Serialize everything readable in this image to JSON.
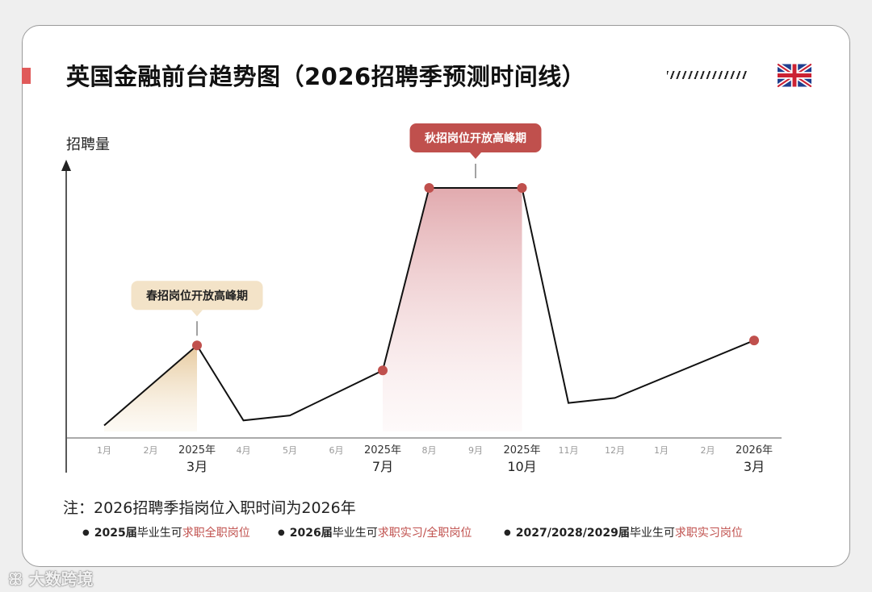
{
  "header": {
    "title": "英国金融前台趋势图（2026招聘季预测时间线）",
    "flag_icon": "uk-flag-icon"
  },
  "colors": {
    "line": "#111111",
    "marker": "#c0504d",
    "spring_fill": "#e8cfa4",
    "autumn_fill": "#d99a9f",
    "spring_callout_bg": "#f3e3c8",
    "autumn_callout_bg": "#c0504d",
    "accent_red": "#e05a5a"
  },
  "chart_data": {
    "type": "line",
    "ylabel": "招聘量",
    "x_ticks": [
      {
        "top": "1月",
        "bottom": ""
      },
      {
        "top": "2月",
        "bottom": ""
      },
      {
        "top": "2025年",
        "bottom": "3月"
      },
      {
        "top": "4月",
        "bottom": ""
      },
      {
        "top": "5月",
        "bottom": ""
      },
      {
        "top": "6月",
        "bottom": ""
      },
      {
        "top": "2025年",
        "bottom": "7月"
      },
      {
        "top": "8月",
        "bottom": ""
      },
      {
        "top": "9月",
        "bottom": ""
      },
      {
        "top": "2025年",
        "bottom": "10月"
      },
      {
        "top": "11月",
        "bottom": ""
      },
      {
        "top": "12月",
        "bottom": ""
      },
      {
        "top": "1月",
        "bottom": ""
      },
      {
        "top": "2月",
        "bottom": ""
      },
      {
        "top": "2026年",
        "bottom": "3月"
      }
    ],
    "points": [
      {
        "x": 0,
        "y": 5
      },
      {
        "x": 2,
        "y": 37
      },
      {
        "x": 3,
        "y": 7
      },
      {
        "x": 4,
        "y": 9
      },
      {
        "x": 6,
        "y": 27
      },
      {
        "x": 7,
        "y": 100
      },
      {
        "x": 9,
        "y": 100
      },
      {
        "x": 10,
        "y": 14
      },
      {
        "x": 11,
        "y": 16
      },
      {
        "x": 14,
        "y": 39
      }
    ],
    "markers": [
      2,
      6,
      7,
      9,
      14
    ],
    "ylim": [
      0,
      115
    ],
    "highlights": [
      {
        "label": "春招岗位开放高峰期",
        "from_x": 0,
        "to_x": 2,
        "style": "spring",
        "anchor_x": 2
      },
      {
        "label": "秋招岗位开放高峰期",
        "from_x": 6,
        "to_x": 9,
        "style": "autumn",
        "anchor_x": 8
      }
    ]
  },
  "notes": {
    "main": "注：2026招聘季指岗位入职时间为2026年",
    "bullets": [
      {
        "bold": "2025届",
        "plain": "毕业生可",
        "red": "求职全职岗位"
      },
      {
        "bold": "2026届",
        "plain": "毕业生可",
        "red": "求职实习/全职岗位"
      },
      {
        "bold": "2027/2028/2029届",
        "plain": "毕业生可",
        "red": "求职实习岗位"
      }
    ]
  },
  "watermark": "大数跨境"
}
